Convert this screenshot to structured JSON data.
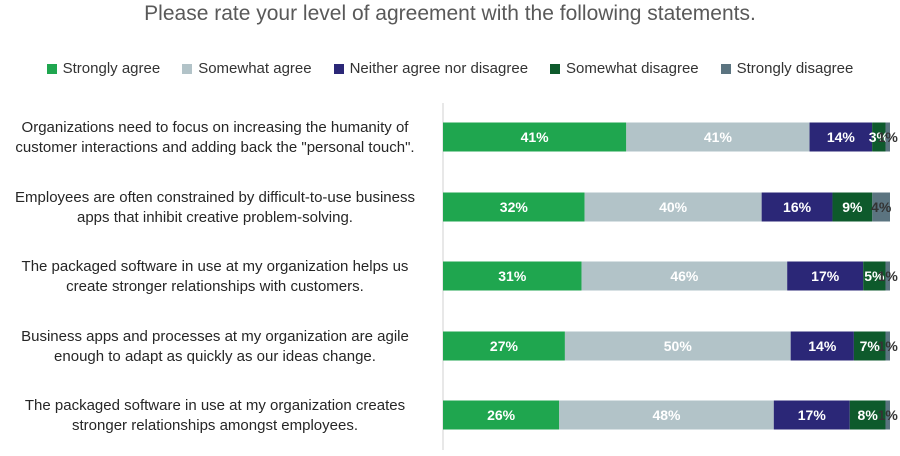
{
  "chart_data": {
    "type": "bar",
    "orientation": "horizontal",
    "stacked": true,
    "title": "Please rate your level of agreement with the following statements.",
    "legend_position": "top",
    "categories": [
      [
        "Organizations need to focus on increasing the humanity of",
        "customer interactions and adding back the \"personal touch\"."
      ],
      [
        "Employees are often constrained by difficult-to-use business",
        "apps that inhibit creative problem-solving."
      ],
      [
        "The packaged software in use at my organization helps us",
        "create stronger relationships with customers."
      ],
      [
        "Business apps and processes at my organization are agile",
        "enough to adapt as quickly as our ideas change."
      ],
      [
        "The packaged software in use at my organization creates",
        "stronger relationships amongst employees."
      ]
    ],
    "series": [
      {
        "name": "Strongly agree",
        "color": "#1fa64f",
        "values": [
          41,
          32,
          31,
          27,
          26
        ]
      },
      {
        "name": "Somewhat agree",
        "color": "#b2c3c8",
        "values": [
          41,
          40,
          46,
          50,
          48
        ]
      },
      {
        "name": "Neither agree nor disagree",
        "color": "#2b2777",
        "values": [
          14,
          16,
          17,
          14,
          17
        ]
      },
      {
        "name": "Somewhat disagree",
        "color": "#0e5a2c",
        "values": [
          3,
          9,
          5,
          7,
          8
        ]
      },
      {
        "name": "Strongly disagree",
        "color": "#5b7480",
        "values": [
          1,
          4,
          1,
          1,
          1
        ]
      }
    ],
    "label_colors": [
      "#ffffff",
      "#ffffff",
      "#ffffff",
      "#ffffff",
      "#333333"
    ],
    "value_suffix": "%",
    "xlim": [
      0,
      100
    ],
    "grid": false
  }
}
